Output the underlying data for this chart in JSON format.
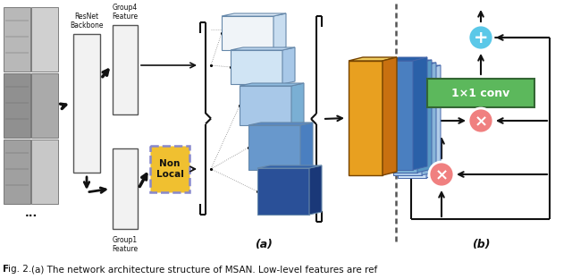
{
  "fig_width": 6.4,
  "fig_height": 3.12,
  "dpi": 100,
  "background_color": "#ffffff",
  "label_a": "(a)",
  "label_b": "(b)",
  "conv_label": "1×1 conv",
  "resnet_label": "ResNet\nBackbone",
  "group4_label": "Group4\nFeature",
  "group1_label": "Group1\nFeature",
  "nonlocal_label": "Non\nLocal",
  "colors": {
    "blue_circle": "#5bc8e8",
    "pink_circle": "#f08080",
    "green_box": "#5cb85c",
    "feature_light": "#dce8f5",
    "feature_mid1": "#b0cce8",
    "feature_mid2": "#7aafd4",
    "feature_dark1": "#4a7fc0",
    "feature_dark2": "#2a5098",
    "feature_gold_front": "#e8a020",
    "feature_gold_top": "#f0cc60",
    "feature_gold_side": "#c87010",
    "nonlocal_fill": "#f0c030",
    "nonlocal_border": "#8888cc",
    "arrow_color": "#111111",
    "line_color": "#111111",
    "box_fill": "#f2f2f2",
    "box_edge": "#555555"
  }
}
